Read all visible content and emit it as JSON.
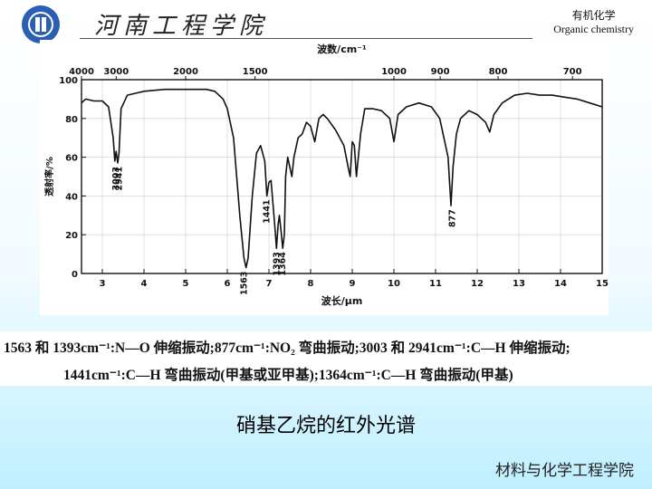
{
  "header": {
    "school_name": "河南工程学院",
    "course_cn": "有机化学",
    "course_en": "Organic chemistry"
  },
  "chart_data": {
    "type": "line",
    "title": "",
    "xlabel": "波长/μm",
    "ylabel": "透射率/%",
    "top_axis_label": "波数/cm⁻¹",
    "xlim": [
      2.5,
      15
    ],
    "ylim": [
      0,
      100
    ],
    "x_ticks": [
      3,
      4,
      5,
      6,
      7,
      8,
      9,
      10,
      11,
      12,
      13,
      14,
      15
    ],
    "y_ticks": [
      0,
      20,
      40,
      60,
      80,
      100
    ],
    "top_ticks": [
      {
        "label": "4000",
        "x": 2.5
      },
      {
        "label": "3000",
        "x": 3.333
      },
      {
        "label": "2000",
        "x": 5.0
      },
      {
        "label": "1500",
        "x": 6.667
      },
      {
        "label": "1000",
        "x": 10.0
      },
      {
        "label": "900",
        "x": 11.111
      },
      {
        "label": "800",
        "x": 12.5
      },
      {
        "label": "700",
        "x": 14.286
      }
    ],
    "grid": true,
    "series": [
      {
        "x": [
          2.5,
          2.6,
          2.8,
          3.0,
          3.15,
          3.26,
          3.3,
          3.33,
          3.37,
          3.4,
          3.45,
          3.6,
          3.8,
          4.0,
          4.5,
          5.0,
          5.5,
          5.7,
          5.9,
          6.0,
          6.15,
          6.3,
          6.4,
          6.45,
          6.5,
          6.6,
          6.7,
          6.8,
          6.9,
          6.95,
          7.0,
          7.05,
          7.1,
          7.15,
          7.18,
          7.22,
          7.25,
          7.3,
          7.33,
          7.37,
          7.4,
          7.45,
          7.5,
          7.55,
          7.6,
          7.7,
          7.8,
          7.9,
          8.0,
          8.1,
          8.2,
          8.3,
          8.4,
          8.6,
          8.8,
          8.9,
          8.95,
          9.0,
          9.05,
          9.1,
          9.2,
          9.3,
          9.5,
          9.7,
          9.9,
          10.0,
          10.1,
          10.3,
          10.6,
          10.9,
          11.1,
          11.2,
          11.3,
          11.37,
          11.42,
          11.5,
          11.6,
          11.8,
          12.0,
          12.2,
          12.3,
          12.4,
          12.6,
          12.9,
          13.2,
          13.5,
          13.8,
          14.1,
          14.4,
          14.7,
          15.0
        ],
        "y": [
          88,
          90,
          89,
          89,
          86,
          70,
          58,
          63,
          57,
          62,
          85,
          92,
          93,
          94,
          95,
          95,
          95,
          94,
          90,
          85,
          70,
          30,
          8,
          3,
          8,
          40,
          62,
          66,
          58,
          40,
          47,
          48,
          35,
          22,
          13,
          25,
          30,
          20,
          13,
          20,
          50,
          60,
          55,
          50,
          60,
          70,
          72,
          78,
          76,
          68,
          80,
          82,
          80,
          74,
          66,
          55,
          50,
          68,
          66,
          50,
          72,
          85,
          85,
          84,
          80,
          68,
          82,
          86,
          88,
          86,
          80,
          70,
          60,
          35,
          55,
          72,
          80,
          84,
          82,
          78,
          73,
          82,
          88,
          92,
          93,
          92,
          92,
          91,
          90,
          88,
          86
        ]
      }
    ],
    "annotations": [
      {
        "text": "3003",
        "x": 3.33,
        "y": 57
      },
      {
        "text": "2941",
        "x": 3.4,
        "y": 57
      },
      {
        "text": "1563",
        "x": 6.4,
        "y": 3
      },
      {
        "text": "1441",
        "x": 6.95,
        "y": 40
      },
      {
        "text": "1393",
        "x": 7.18,
        "y": 13
      },
      {
        "text": "1364",
        "x": 7.33,
        "y": 13
      },
      {
        "text": "877",
        "x": 11.4,
        "y": 35
      }
    ]
  },
  "caption": {
    "line1": "1563 和 1393cm⁻¹:N—O 伸缩振动;877cm⁻¹:NO₂ 弯曲振动;3003 和 2941cm⁻¹:C—H 伸缩振动;",
    "line2": "1441cm⁻¹:C—H 弯曲振动(甲基或亚甲基);1364cm⁻¹:C—H 弯曲振动(甲基)"
  },
  "figure_title": "硝基乙烷的红外光谱",
  "department": "材料与化学工程学院"
}
